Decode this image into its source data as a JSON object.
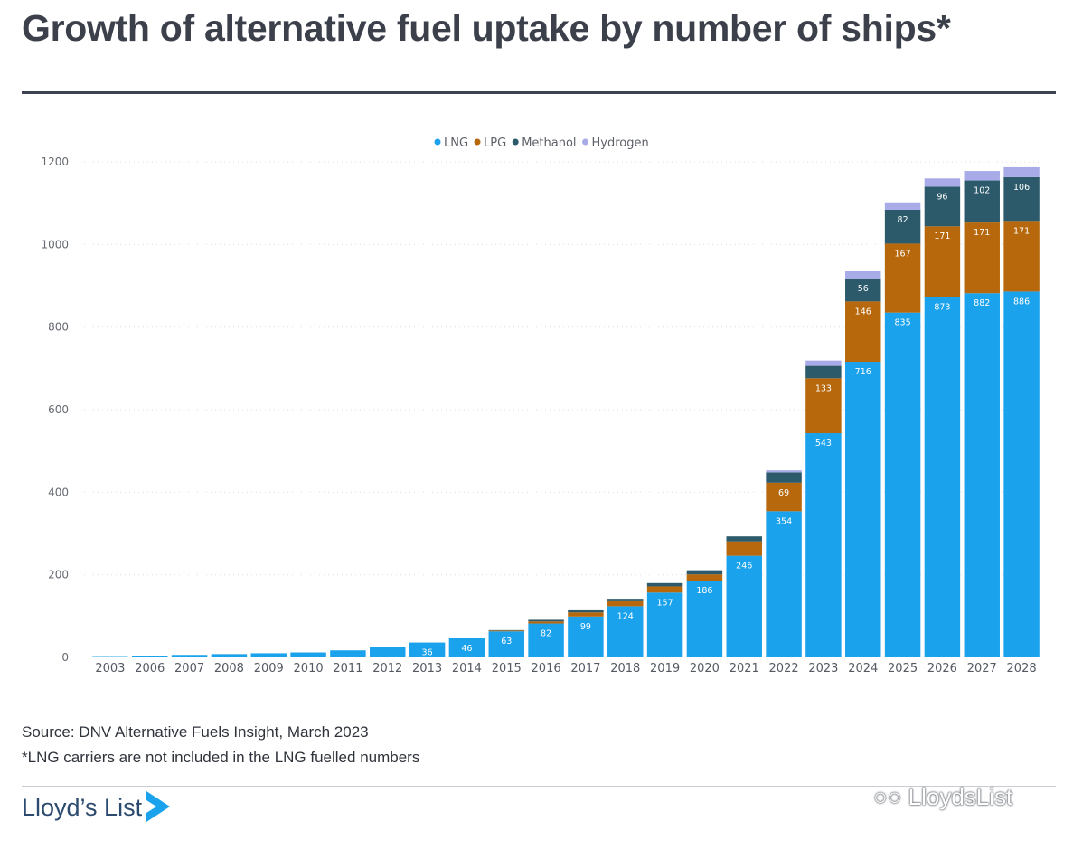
{
  "header": {
    "title": "Growth of alternative fuel uptake by number of ships*"
  },
  "colors": {
    "LNG": "#1aa2ec",
    "LPG": "#b7680c",
    "Methanol": "#2c5a6b",
    "Hydrogen": "#a8abe8"
  },
  "chart_data": {
    "type": "bar",
    "stacked": true,
    "categories": [
      "2003",
      "2006",
      "2007",
      "2008",
      "2009",
      "2010",
      "2011",
      "2012",
      "2013",
      "2014",
      "2015",
      "2016",
      "2017",
      "2018",
      "2019",
      "2020",
      "2021",
      "2022",
      "2023",
      "2024",
      "2025",
      "2026",
      "2027",
      "2028"
    ],
    "series": [
      {
        "name": "LNG",
        "values": [
          1,
          3,
          6,
          8,
          10,
          12,
          17,
          26,
          36,
          46,
          63,
          82,
          99,
          124,
          157,
          186,
          246,
          354,
          543,
          716,
          835,
          873,
          882,
          886
        ]
      },
      {
        "name": "LPG",
        "values": [
          0,
          0,
          0,
          0,
          0,
          0,
          0,
          0,
          0,
          0,
          2,
          5,
          10,
          12,
          15,
          15,
          35,
          69,
          133,
          146,
          167,
          171,
          171,
          171
        ]
      },
      {
        "name": "Methanol",
        "values": [
          0,
          0,
          0,
          0,
          0,
          0,
          0,
          0,
          0,
          0,
          1,
          4,
          5,
          6,
          8,
          10,
          12,
          25,
          30,
          56,
          82,
          96,
          102,
          106
        ]
      },
      {
        "name": "Hydrogen",
        "values": [
          0,
          0,
          0,
          0,
          0,
          0,
          0,
          0,
          0,
          0,
          0,
          0,
          0,
          0,
          0,
          0,
          0,
          5,
          13,
          17,
          18,
          20,
          23,
          24
        ]
      }
    ],
    "data_labels": {
      "LNG": [
        "",
        "",
        "",
        "",
        "",
        "",
        "",
        "",
        "36",
        "46",
        "63",
        "82",
        "99",
        "124",
        "157",
        "186",
        "246",
        "354",
        "543",
        "716",
        "835",
        "873",
        "882",
        "886"
      ],
      "LPG": [
        "",
        "",
        "",
        "",
        "",
        "",
        "",
        "",
        "",
        "",
        "",
        "",
        "",
        "",
        "",
        "",
        "",
        "69",
        "133",
        "146",
        "167",
        "171",
        "171",
        "171"
      ],
      "Methanol": [
        "",
        "",
        "",
        "",
        "",
        "",
        "",
        "",
        "",
        "",
        "",
        "",
        "",
        "",
        "",
        "",
        "",
        "",
        "",
        "56",
        "82",
        "96",
        "102",
        "106"
      ],
      "Hydrogen": [
        "",
        "",
        "",
        "",
        "",
        "",
        "",
        "",
        "",
        "",
        "",
        "",
        "",
        "",
        "",
        "",
        "",
        "",
        "",
        "",
        "",
        "",
        "",
        ""
      ]
    },
    "yticks": [
      "0",
      "200",
      "400",
      "600",
      "800",
      "1000",
      "1200"
    ],
    "ylim": [
      0,
      1200
    ],
    "legend_position": "top-center",
    "grid": true
  },
  "footer": {
    "source": "Source: DNV Alternative Fuels Insight, March 2023",
    "note": "*LNG carriers are not included in the LNG fuelled numbers",
    "brand": "Lloyd’s List",
    "watermark": "LloydsList"
  }
}
